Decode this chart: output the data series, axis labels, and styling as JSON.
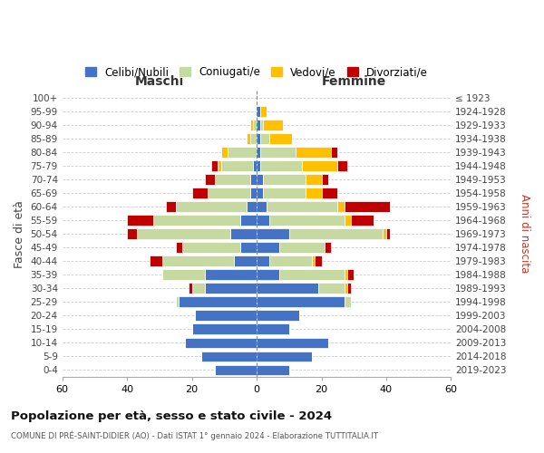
{
  "age_groups": [
    "0-4",
    "5-9",
    "10-14",
    "15-19",
    "20-24",
    "25-29",
    "30-34",
    "35-39",
    "40-44",
    "45-49",
    "50-54",
    "55-59",
    "60-64",
    "65-69",
    "70-74",
    "75-79",
    "80-84",
    "85-89",
    "90-94",
    "95-99",
    "100+"
  ],
  "birth_years": [
    "2019-2023",
    "2014-2018",
    "2009-2013",
    "2004-2008",
    "1999-2003",
    "1994-1998",
    "1989-1993",
    "1984-1988",
    "1979-1983",
    "1974-1978",
    "1969-1973",
    "1964-1968",
    "1959-1963",
    "1954-1958",
    "1949-1953",
    "1944-1948",
    "1939-1943",
    "1934-1938",
    "1929-1933",
    "1924-1928",
    "≤ 1923"
  ],
  "colors": {
    "celibi": "#4472c4",
    "coniugati": "#c5d9a0",
    "vedovi": "#ffc000",
    "divorziati": "#c00000"
  },
  "maschi": {
    "celibi": [
      13,
      17,
      22,
      20,
      19,
      24,
      16,
      16,
      7,
      5,
      8,
      5,
      3,
      2,
      2,
      1,
      0,
      0,
      0,
      0,
      0
    ],
    "coniugati": [
      0,
      0,
      0,
      0,
      0,
      1,
      4,
      13,
      22,
      18,
      29,
      27,
      22,
      13,
      11,
      10,
      9,
      2,
      1,
      0,
      0
    ],
    "vedovi": [
      0,
      0,
      0,
      0,
      0,
      0,
      0,
      0,
      0,
      0,
      0,
      0,
      0,
      0,
      0,
      1,
      2,
      1,
      1,
      0,
      0
    ],
    "divorziati": [
      0,
      0,
      0,
      0,
      0,
      0,
      1,
      0,
      4,
      2,
      3,
      8,
      3,
      5,
      3,
      2,
      0,
      0,
      0,
      0,
      0
    ]
  },
  "femmine": {
    "celibi": [
      10,
      17,
      22,
      10,
      13,
      27,
      19,
      7,
      4,
      7,
      10,
      4,
      3,
      2,
      2,
      1,
      1,
      1,
      1,
      1,
      0
    ],
    "coniugati": [
      0,
      0,
      0,
      0,
      0,
      2,
      8,
      20,
      13,
      14,
      29,
      23,
      22,
      13,
      13,
      13,
      11,
      3,
      1,
      0,
      0
    ],
    "vedovi": [
      0,
      0,
      0,
      0,
      0,
      0,
      1,
      1,
      1,
      0,
      1,
      2,
      2,
      5,
      5,
      11,
      11,
      7,
      6,
      2,
      0
    ],
    "divorziati": [
      0,
      0,
      0,
      0,
      0,
      0,
      1,
      2,
      2,
      2,
      1,
      7,
      14,
      5,
      2,
      3,
      2,
      0,
      0,
      0,
      0
    ]
  },
  "xlim": 60,
  "title": "Popolazione per età, sesso e stato civile - 2024",
  "subtitle": "COMUNE DI PRÉ-SAINT-DIDIER (AO) - Dati ISTAT 1° gennaio 2024 - Elaborazione TUTTITALIA.IT",
  "legend_labels": [
    "Celibi/Nubili",
    "Coniugati/e",
    "Vedovi/e",
    "Divorziati/e"
  ],
  "maschi_label": "Maschi",
  "femmine_label": "Femmine",
  "ylabel_left": "Fasce di età",
  "ylabel_right": "Anni di nascita"
}
